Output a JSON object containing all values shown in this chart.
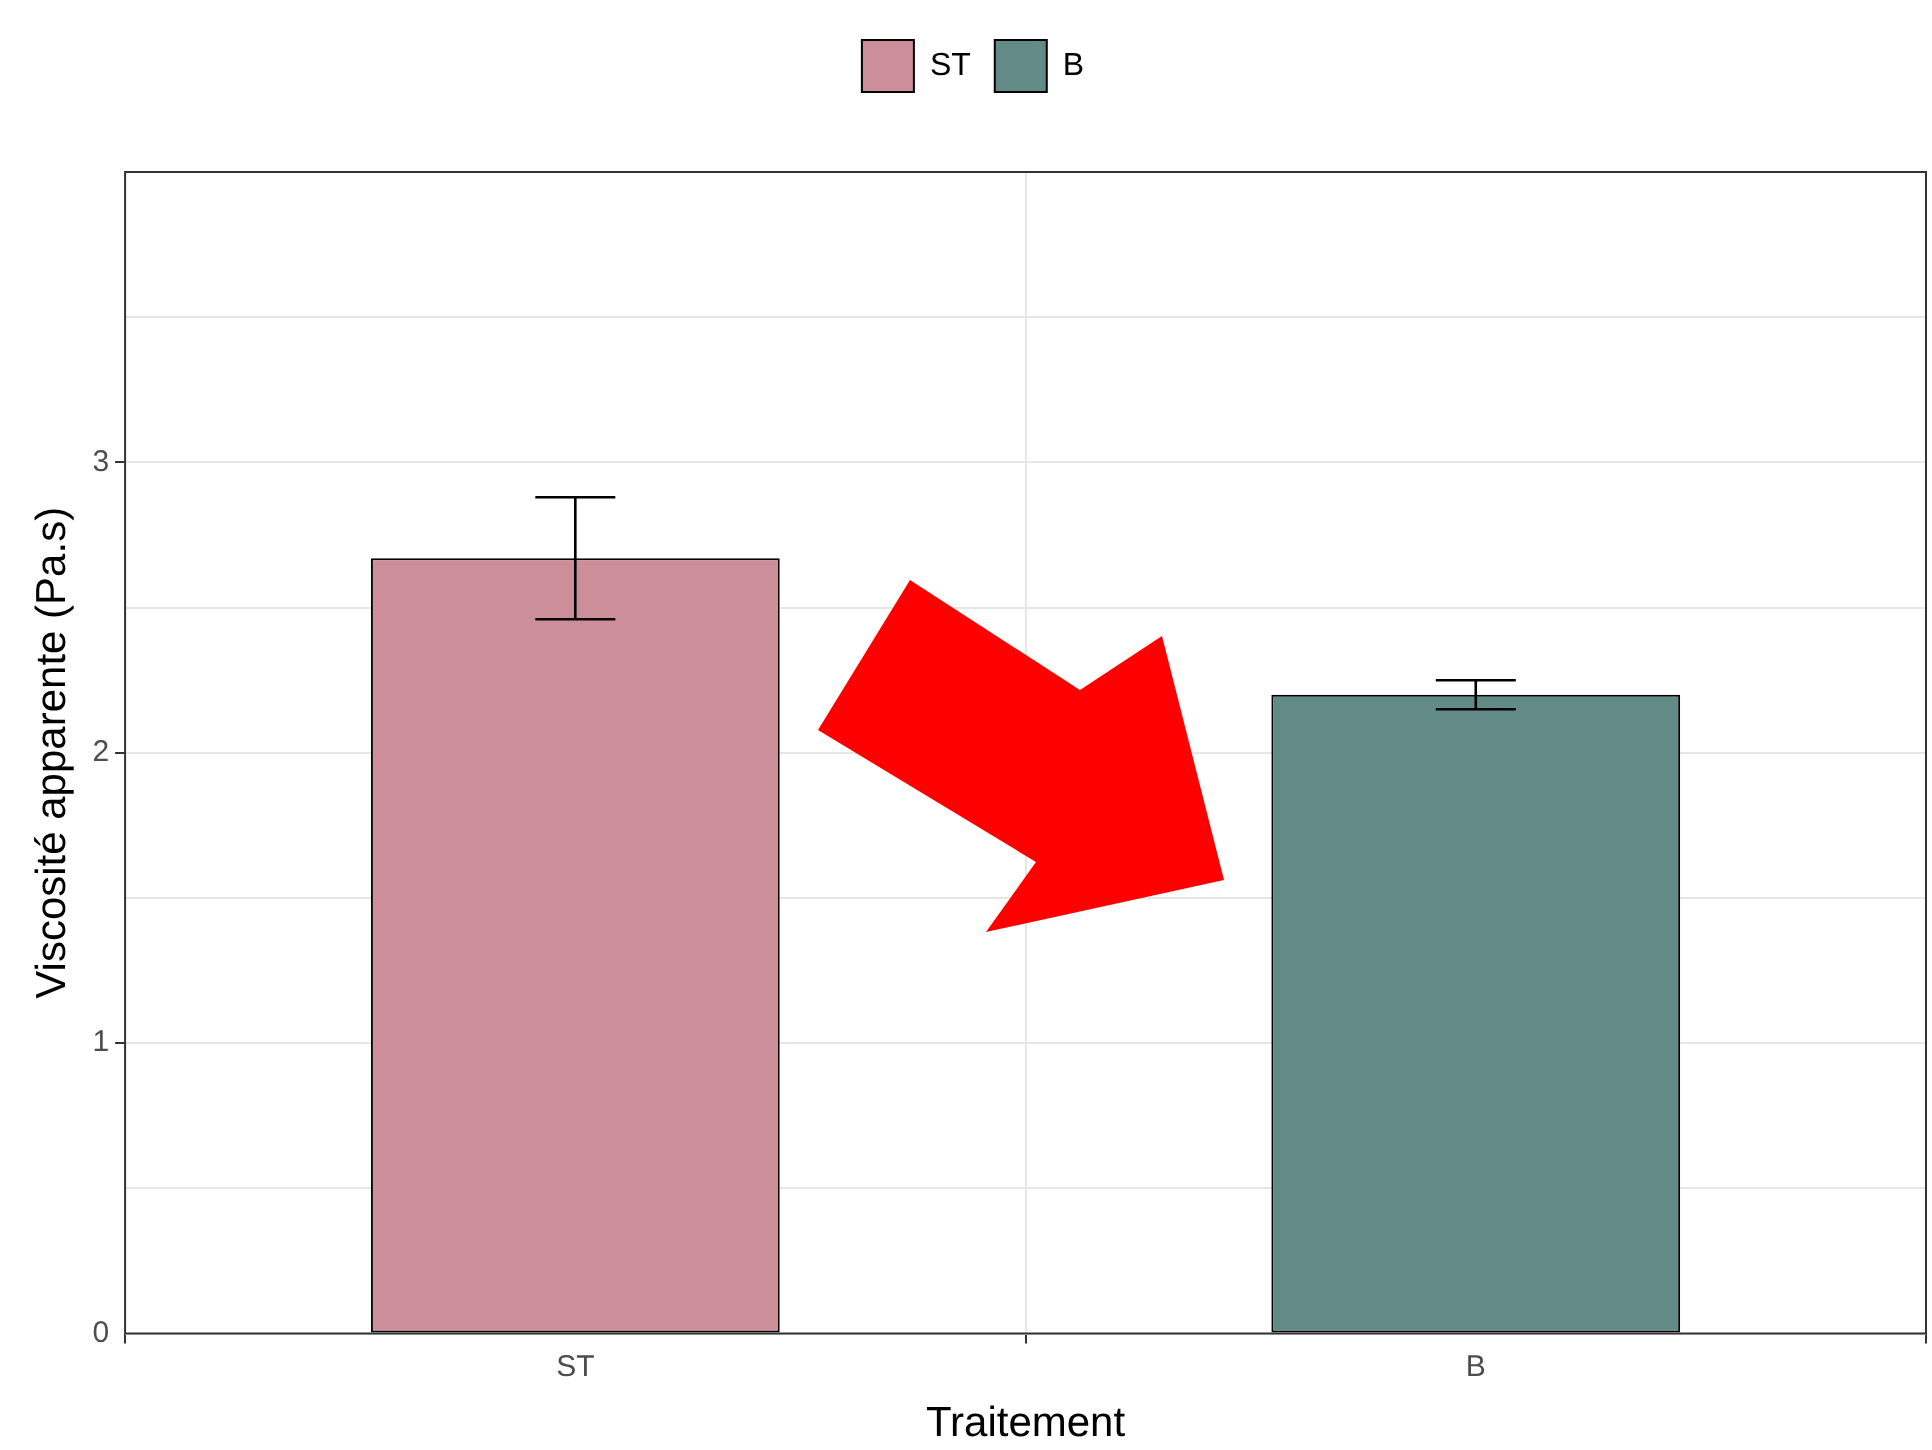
{
  "chart_data": {
    "type": "bar",
    "xlabel": "Traitement",
    "ylabel": "Viscosité apparente (Pa.s)",
    "categories": [
      "ST",
      "B"
    ],
    "series": [
      {
        "name": "ST",
        "color": "#cc8f9a",
        "values": [
          2.67,
          null
        ],
        "errors": [
          0.21,
          null
        ]
      },
      {
        "name": "B",
        "color": "#628a87",
        "values": [
          null,
          2.2
        ],
        "errors": [
          null,
          0.05
        ]
      }
    ],
    "ylim": [
      0,
      4
    ],
    "yticks": [
      0,
      {
        "value": 0.5,
        "label": null
      },
      1,
      {
        "value": 1.5,
        "label": null
      },
      2,
      {
        "value": 2.5,
        "label": null
      },
      3,
      {
        "value": 3.5,
        "label": null
      }
    ],
    "grid": true,
    "legend": "top"
  }
}
